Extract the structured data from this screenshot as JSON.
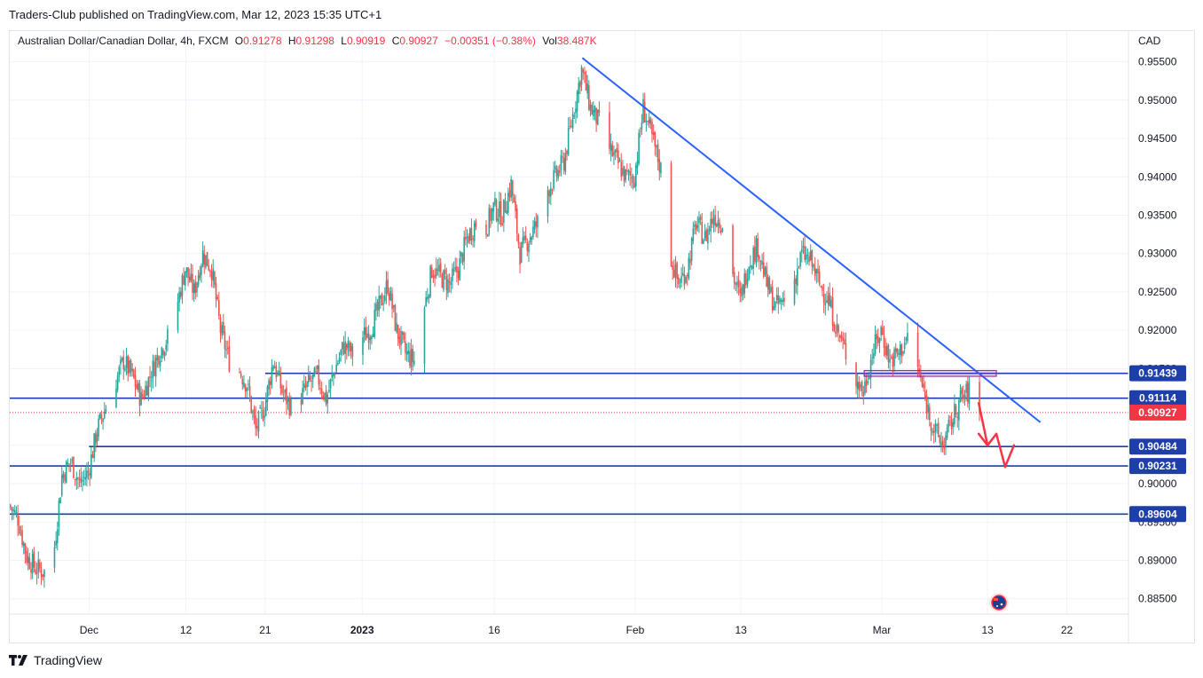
{
  "header": {
    "published_text": "Traders-Club published on TradingView.com, Mar 12, 2023 15:35 UTC+1"
  },
  "legend": {
    "symbol": "Australian Dollar/Canadian Dollar, 4h, FXCM",
    "open_label": "O",
    "open": "0.91278",
    "high_label": "H",
    "high": "0.91298",
    "low_label": "L",
    "low": "0.90919",
    "close_label": "C",
    "close": "0.90927",
    "change": "−0.00351 (−0.38%)",
    "volume_label": "Vol",
    "volume": "38.487K"
  },
  "footer": {
    "brand": "TradingView"
  },
  "colors": {
    "up": "#26a69a",
    "down": "#ef5350",
    "level": "#1e3fa8",
    "trend": "#2962ff",
    "arrow": "#f23645",
    "zone": "#9c27b0",
    "grid": "#f0f3fa"
  },
  "chart_data": {
    "type": "candlestick",
    "currency_label": "CAD",
    "y_ticks": [
      "0.95500",
      "0.95000",
      "0.94500",
      "0.94000",
      "0.93500",
      "0.93000",
      "0.92500",
      "0.92000",
      "0.91500",
      "0.90500",
      "0.90000",
      "0.89500",
      "0.89000",
      "0.88500"
    ],
    "y_range": [
      0.883,
      0.959
    ],
    "x_range": [
      "2022-11-22",
      "2023-03-29"
    ],
    "x_ticks": [
      {
        "label": "Dec",
        "date": "2022-12-01",
        "bold": false
      },
      {
        "label": "12",
        "date": "2022-12-12",
        "bold": false
      },
      {
        "label": "21",
        "date": "2022-12-21",
        "bold": false
      },
      {
        "label": "2023",
        "date": "2023-01-01",
        "bold": true
      },
      {
        "label": "16",
        "date": "2023-01-16",
        "bold": false
      },
      {
        "label": "Feb",
        "date": "2023-02-01",
        "bold": false
      },
      {
        "label": "13",
        "date": "2023-02-13",
        "bold": false
      },
      {
        "label": "Mar",
        "date": "2023-03-01",
        "bold": false
      },
      {
        "label": "13",
        "date": "2023-03-13",
        "bold": false
      },
      {
        "label": "22",
        "date": "2023-03-22",
        "bold": false
      }
    ],
    "price_path": [
      [
        "2022-11-22",
        0.8972
      ],
      [
        "2022-11-23",
        0.8955
      ],
      [
        "2022-11-24",
        0.8905
      ],
      [
        "2022-11-25",
        0.889
      ],
      [
        "2022-11-26",
        0.8885
      ],
      [
        "2022-11-27",
        0.89
      ],
      [
        "2022-11-28",
        0.901
      ],
      [
        "2022-11-29",
        0.903
      ],
      [
        "2022-11-30",
        0.9
      ],
      [
        "2022-12-01",
        0.9015
      ],
      [
        "2022-12-02",
        0.907
      ],
      [
        "2022-12-03",
        0.91
      ],
      [
        "2022-12-04",
        0.913
      ],
      [
        "2022-12-05",
        0.916
      ],
      [
        "2022-12-06",
        0.914
      ],
      [
        "2022-12-07",
        0.911
      ],
      [
        "2022-12-08",
        0.914
      ],
      [
        "2022-12-09",
        0.917
      ],
      [
        "2022-12-10",
        0.919
      ],
      [
        "2022-12-11",
        0.923
      ],
      [
        "2022-12-12",
        0.928
      ],
      [
        "2022-12-13",
        0.925
      ],
      [
        "2022-12-14",
        0.93
      ],
      [
        "2022-12-15",
        0.928
      ],
      [
        "2022-12-16",
        0.92
      ],
      [
        "2022-12-17",
        0.916
      ],
      [
        "2022-12-18",
        0.915
      ],
      [
        "2022-12-19",
        0.913
      ],
      [
        "2022-12-20",
        0.907
      ],
      [
        "2022-12-21",
        0.91
      ],
      [
        "2022-12-22",
        0.916
      ],
      [
        "2022-12-23",
        0.912
      ],
      [
        "2022-12-24",
        0.91
      ],
      [
        "2022-12-25",
        0.911
      ],
      [
        "2022-12-26",
        0.913
      ],
      [
        "2022-12-27",
        0.914
      ],
      [
        "2022-12-28",
        0.911
      ],
      [
        "2022-12-29",
        0.915
      ],
      [
        "2022-12-30",
        0.918
      ],
      [
        "2022-12-31",
        0.917
      ],
      [
        "2023-01-01",
        0.919
      ],
      [
        "2023-01-02",
        0.92
      ],
      [
        "2023-01-03",
        0.923
      ],
      [
        "2023-01-04",
        0.926
      ],
      [
        "2023-01-05",
        0.92
      ],
      [
        "2023-01-06",
        0.917
      ],
      [
        "2023-01-07",
        0.916
      ],
      [
        "2023-01-08",
        0.922
      ],
      [
        "2023-01-09",
        0.928
      ],
      [
        "2023-01-10",
        0.927
      ],
      [
        "2023-01-11",
        0.926
      ],
      [
        "2023-01-12",
        0.928
      ],
      [
        "2023-01-13",
        0.932
      ],
      [
        "2023-01-14",
        0.934
      ],
      [
        "2023-01-15",
        0.933
      ],
      [
        "2023-01-16",
        0.936
      ],
      [
        "2023-01-17",
        0.935
      ],
      [
        "2023-01-18",
        0.939
      ],
      [
        "2023-01-19",
        0.93
      ],
      [
        "2023-01-20",
        0.932
      ],
      [
        "2023-01-21",
        0.934
      ],
      [
        "2023-01-22",
        0.938
      ],
      [
        "2023-01-23",
        0.94
      ],
      [
        "2023-01-24",
        0.942
      ],
      [
        "2023-01-25",
        0.948
      ],
      [
        "2023-01-26",
        0.954
      ],
      [
        "2023-01-27",
        0.949
      ],
      [
        "2023-01-28",
        0.947
      ],
      [
        "2023-01-29",
        0.944
      ],
      [
        "2023-01-30",
        0.942
      ],
      [
        "2023-01-31",
        0.94
      ],
      [
        "2023-02-01",
        0.94
      ],
      [
        "2023-02-02",
        0.949
      ],
      [
        "2023-02-03",
        0.945
      ],
      [
        "2023-02-04",
        0.941
      ],
      [
        "2023-02-05",
        0.93
      ],
      [
        "2023-02-06",
        0.926
      ],
      [
        "2023-02-07",
        0.928
      ],
      [
        "2023-02-08",
        0.934
      ],
      [
        "2023-02-09",
        0.932
      ],
      [
        "2023-02-10",
        0.935
      ],
      [
        "2023-02-11",
        0.934
      ],
      [
        "2023-02-12",
        0.928
      ],
      [
        "2023-02-13",
        0.924
      ],
      [
        "2023-02-14",
        0.929
      ],
      [
        "2023-02-15",
        0.931
      ],
      [
        "2023-02-16",
        0.926
      ],
      [
        "2023-02-17",
        0.923
      ],
      [
        "2023-02-18",
        0.924
      ],
      [
        "2023-02-19",
        0.926
      ],
      [
        "2023-02-20",
        0.93
      ],
      [
        "2023-02-21",
        0.929
      ],
      [
        "2023-02-22",
        0.926
      ],
      [
        "2023-02-23",
        0.924
      ],
      [
        "2023-02-24",
        0.92
      ],
      [
        "2023-02-25",
        0.917
      ],
      [
        "2023-02-26",
        0.914
      ],
      [
        "2023-02-27",
        0.912
      ],
      [
        "2023-02-28",
        0.917
      ],
      [
        "2023-03-01",
        0.92
      ],
      [
        "2023-03-02",
        0.916
      ],
      [
        "2023-03-03",
        0.917
      ],
      [
        "2023-03-04",
        0.919
      ],
      [
        "2023-03-05",
        0.916
      ],
      [
        "2023-03-06",
        0.911
      ],
      [
        "2023-03-07",
        0.907
      ],
      [
        "2023-03-08",
        0.905
      ],
      [
        "2023-03-09",
        0.908
      ],
      [
        "2023-03-10",
        0.911
      ],
      [
        "2023-03-11",
        0.912
      ],
      [
        "2023-03-12",
        0.9093
      ]
    ],
    "levels": [
      {
        "price": 0.91439,
        "label": "0.91439",
        "from": "2022-12-21"
      },
      {
        "price": 0.91114,
        "label": "0.91114",
        "from": "2022-11-22"
      },
      {
        "price": 0.90484,
        "label": "0.90484",
        "from": "2022-12-01"
      },
      {
        "price": 0.90231,
        "label": "0.90231",
        "from": "2022-11-22"
      },
      {
        "price": 0.89604,
        "label": "0.89604",
        "from": "2022-11-22"
      }
    ],
    "current_price": {
      "price": 0.90927,
      "label": "0.90927"
    },
    "trendline": [
      [
        "2023-01-26",
        0.9555
      ],
      [
        "2023-03-19",
        0.908
      ]
    ],
    "resistance_zone": {
      "from": "2023-02-27",
      "to": "2023-03-14",
      "top": 0.91475,
      "bottom": 0.914
    },
    "projection_arrows": [
      [
        [
          "2023-03-12",
          0.9105
        ],
        [
          "2023-03-13",
          0.905
        ]
      ],
      [
        [
          "2023-03-12",
          0.9065
        ],
        [
          "2023-03-13",
          0.905
        ]
      ],
      [
        [
          "2023-03-13",
          0.905
        ],
        [
          "2023-03-14",
          0.9065
        ]
      ],
      [
        [
          "2023-03-14",
          0.9065
        ],
        [
          "2023-03-15",
          0.9022
        ]
      ],
      [
        [
          "2023-03-15",
          0.9022
        ],
        [
          "2023-03-16",
          0.905
        ]
      ]
    ],
    "flag_icon": "australia-flag-icon",
    "grid": true
  }
}
